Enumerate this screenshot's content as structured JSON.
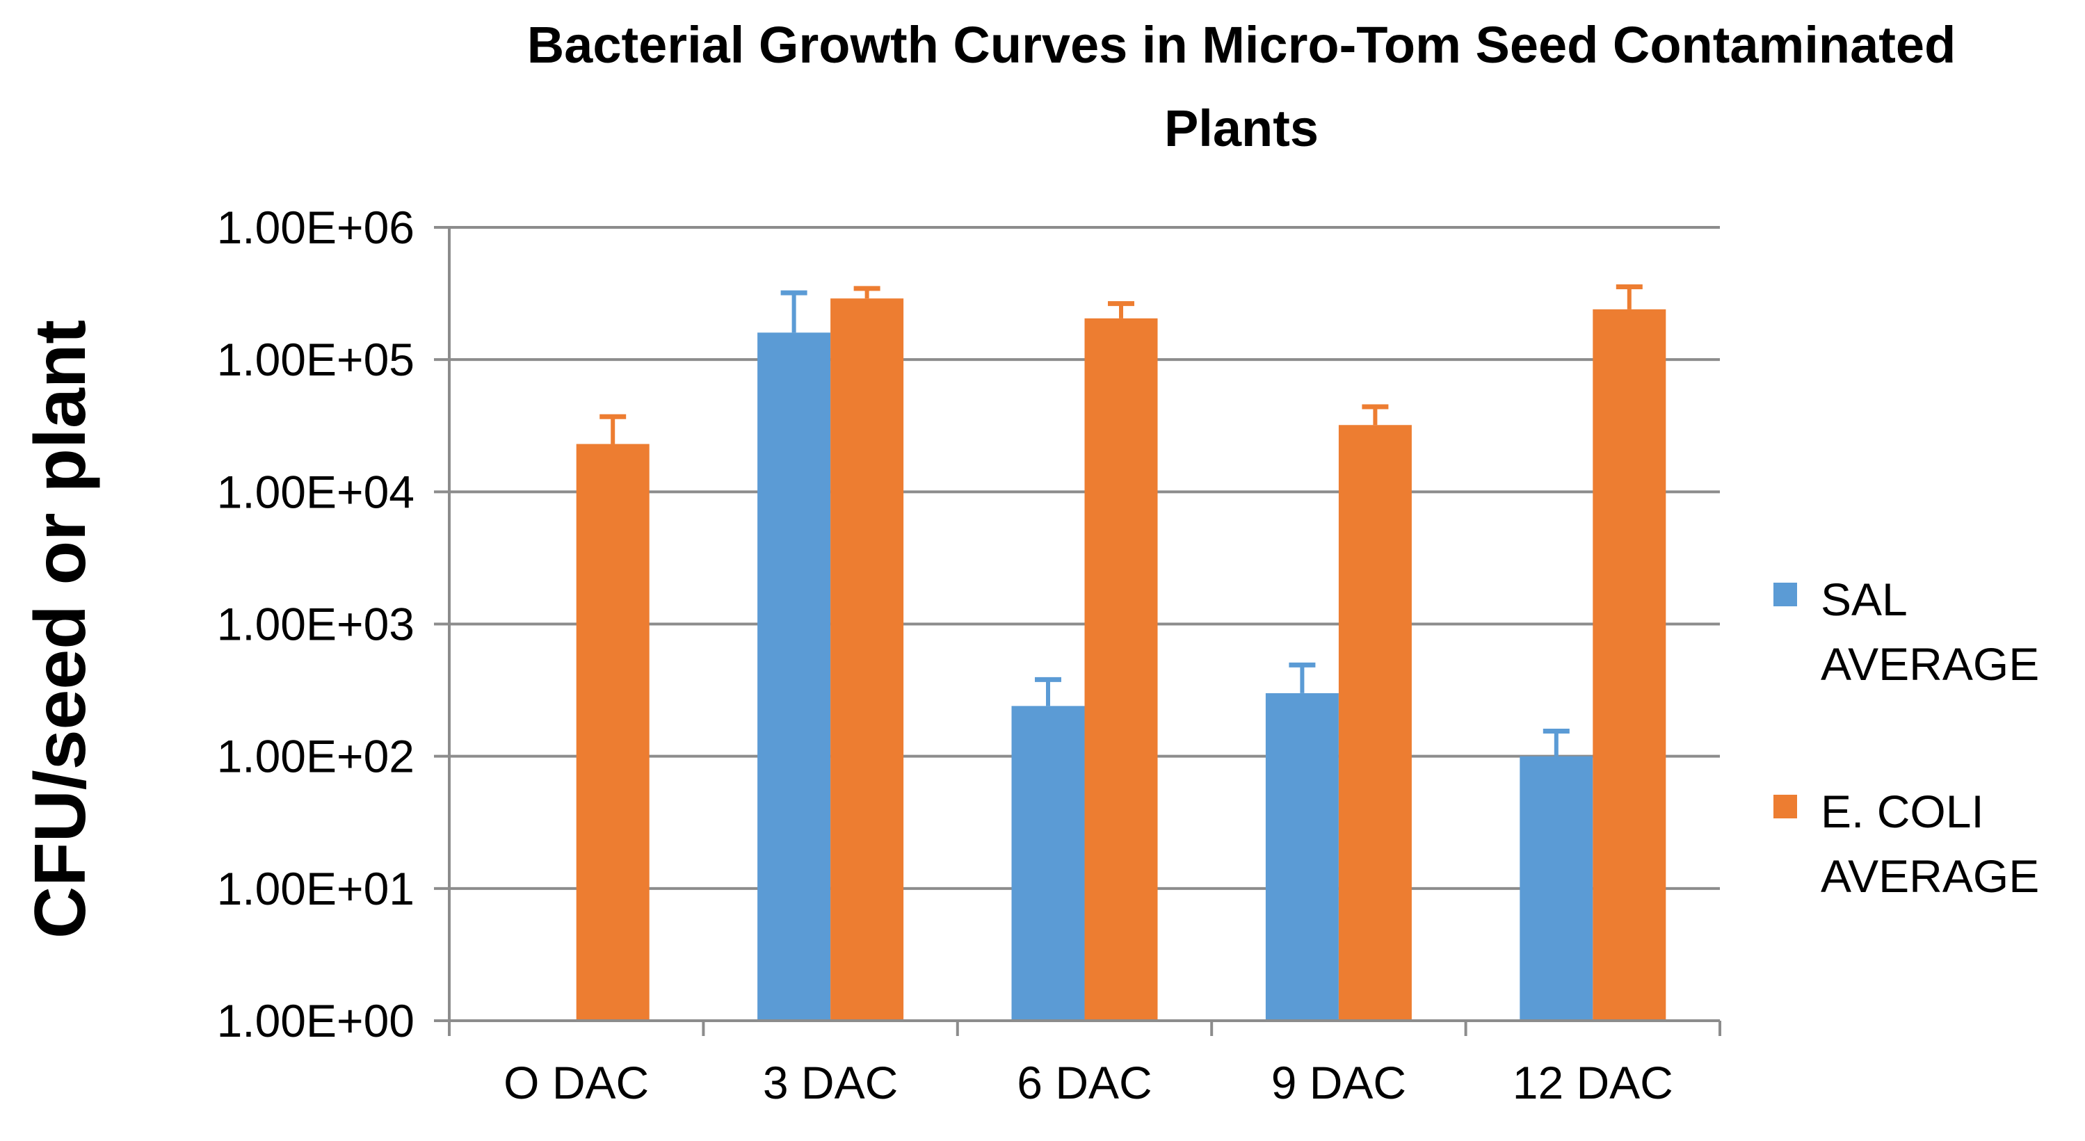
{
  "chart_data": {
    "type": "bar",
    "title_lines": [
      "Bacterial Growth Curves in Micro-Tom Seed Contaminated",
      "Plants"
    ],
    "ylabel": "CFU/seed or plant",
    "xlabel": "",
    "yscale": "log",
    "ylim": [
      1,
      1000000
    ],
    "ytick_values": [
      1,
      10,
      100,
      1000,
      10000,
      100000,
      1000000
    ],
    "ytick_labels": [
      "1.00E+00",
      "1.00E+01",
      "1.00E+02",
      "1.00E+03",
      "1.00E+04",
      "1.00E+05",
      "1.00E+06"
    ],
    "grid": true,
    "legend_position": "right",
    "categories": [
      "O DAC",
      "3 DAC",
      "6 DAC",
      "9 DAC",
      "12 DAC"
    ],
    "series": [
      {
        "name_lines": [
          "SAL",
          "AVERAGE"
        ],
        "color": "#5b9bd5",
        "values": [
          1,
          160000,
          240,
          300,
          100
        ],
        "error_upper": [
          0,
          320000,
          380,
          490,
          155
        ]
      },
      {
        "name_lines": [
          "E. COLI",
          "AVERAGE"
        ],
        "color": "#ed7d31",
        "values": [
          23000,
          290000,
          205000,
          32000,
          240000
        ],
        "error_upper": [
          37000,
          345000,
          265000,
          44000,
          355000
        ]
      }
    ]
  }
}
